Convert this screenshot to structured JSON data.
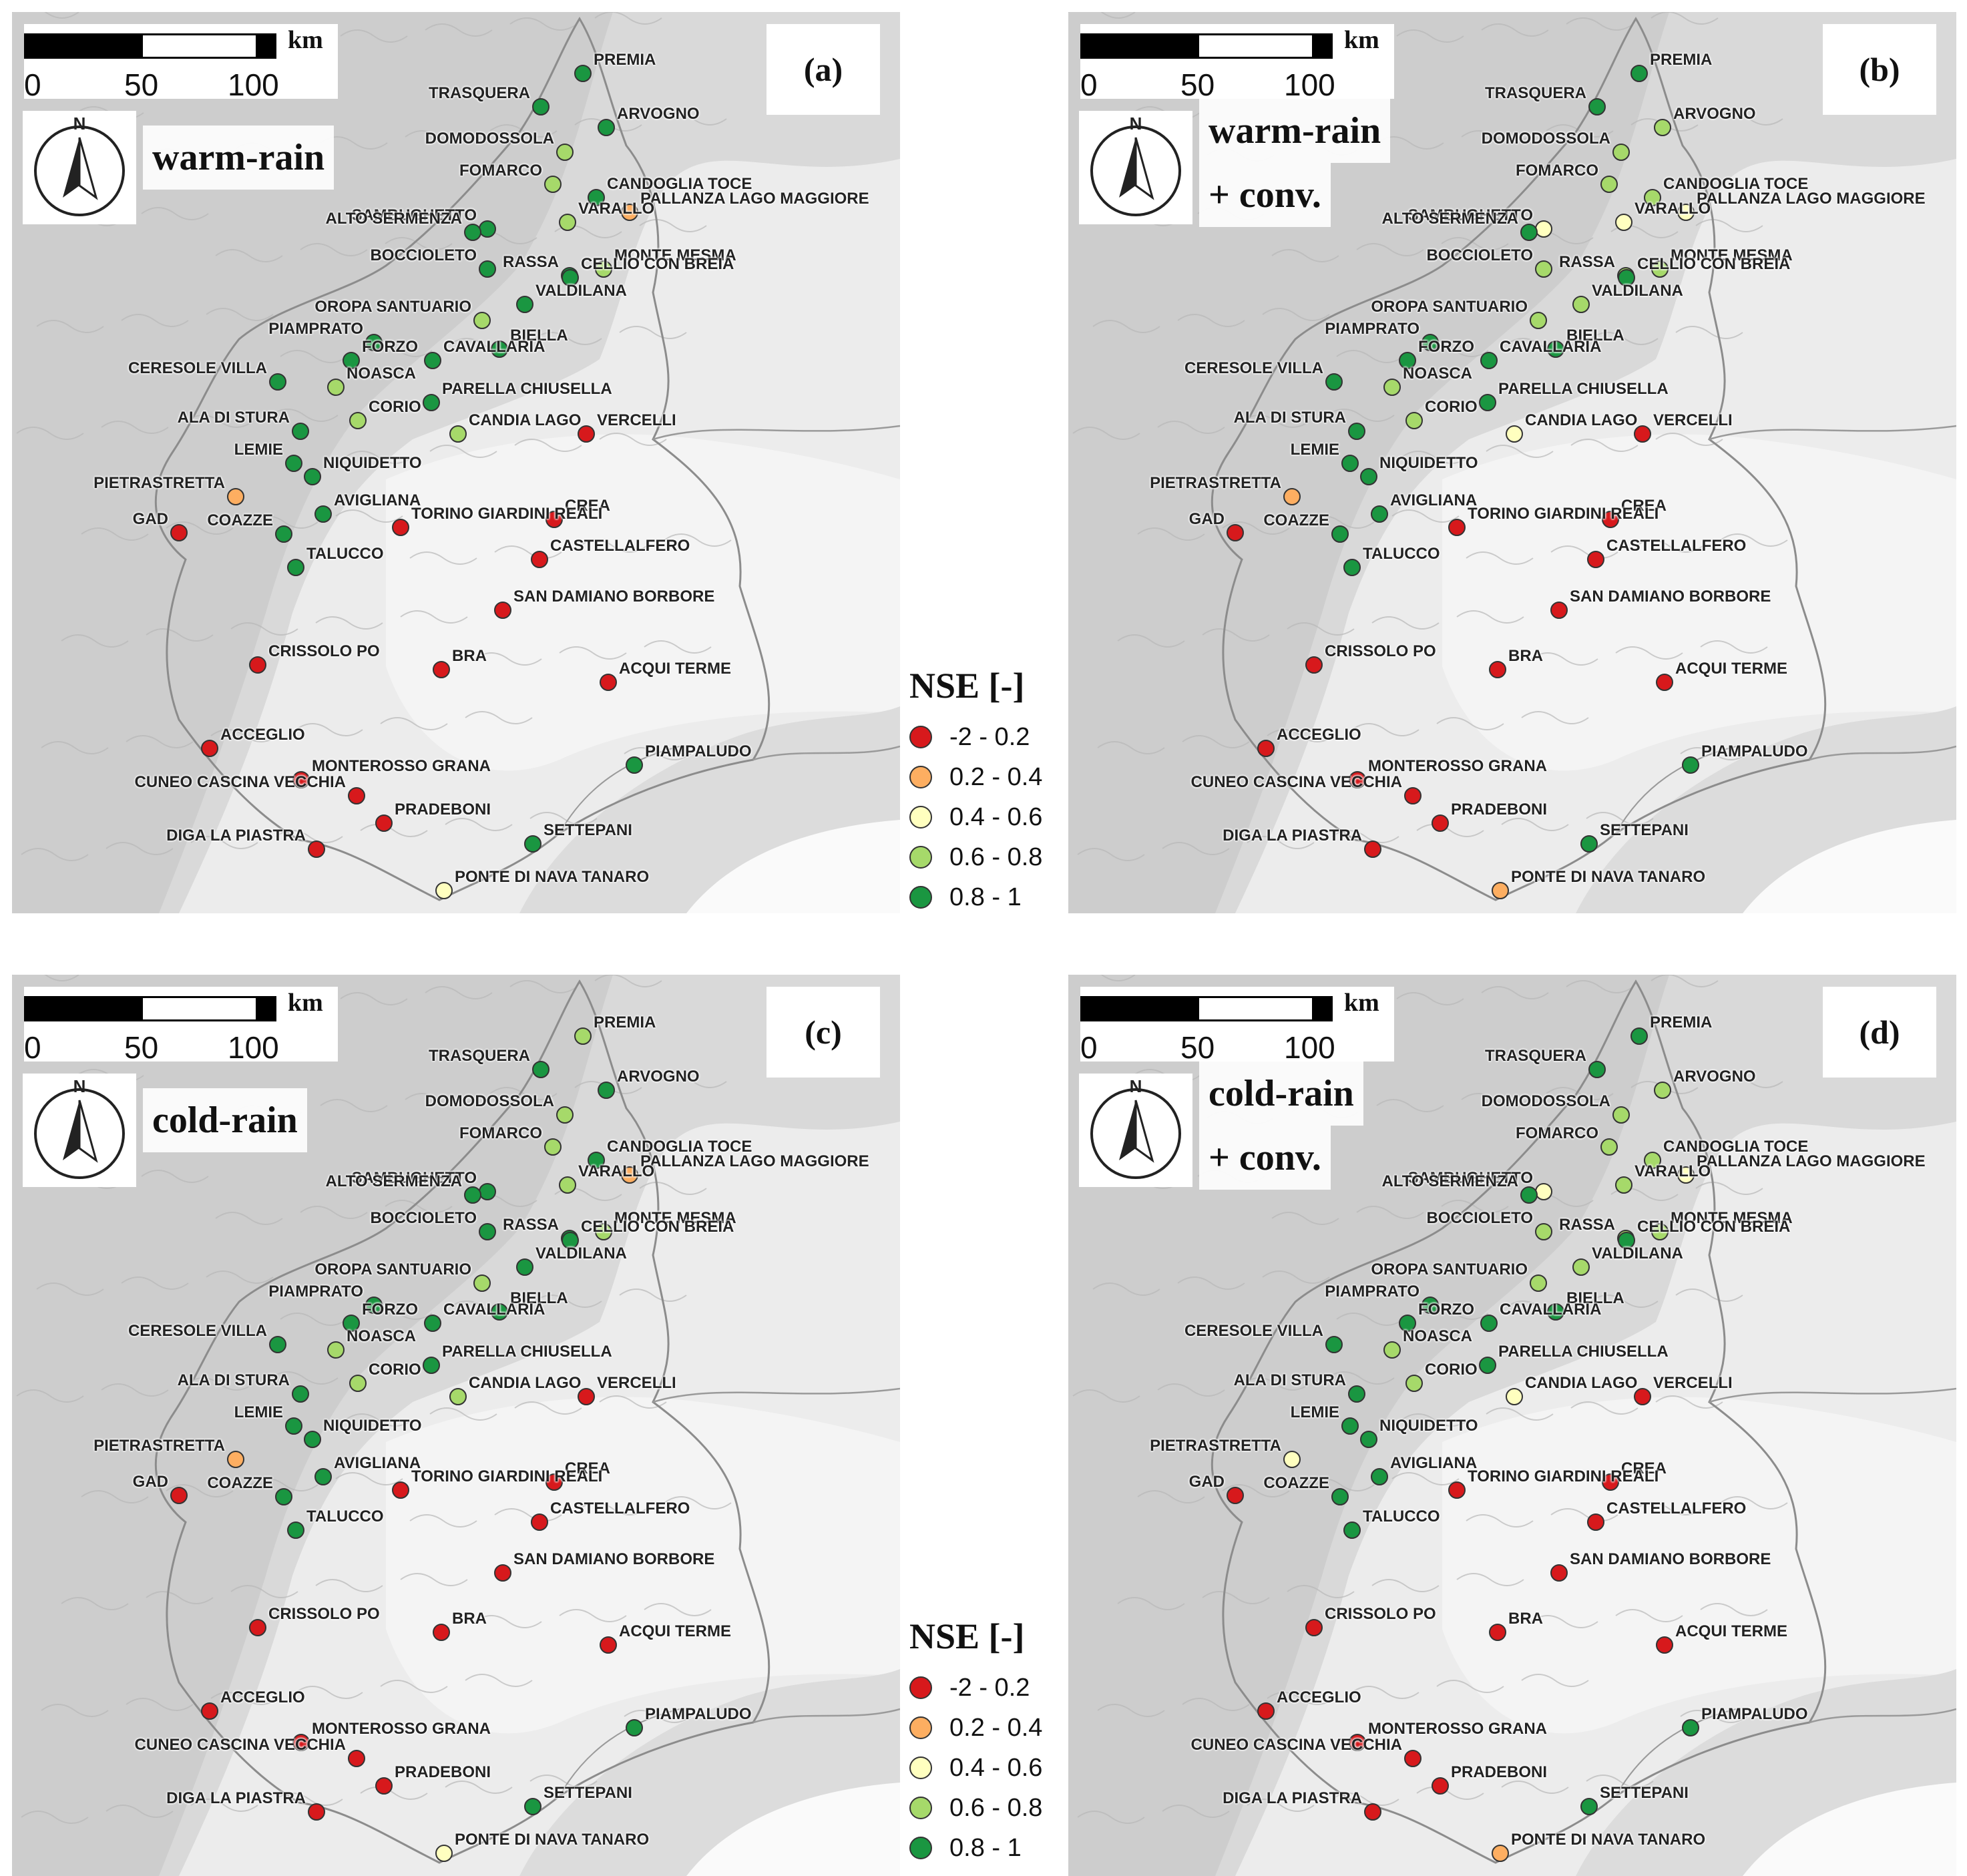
{
  "colors": {
    "c1": "#d7191c",
    "c2": "#fdae61",
    "c3": "#ffffbf",
    "c4": "#a6d96a",
    "c5": "#1a9641"
  },
  "scale": {
    "labels": [
      "0",
      "50",
      "100"
    ],
    "unit": "km"
  },
  "legend": {
    "title": "NSE [-]",
    "classes": [
      {
        "label": "-2 - 0.2",
        "color": "#d7191c"
      },
      {
        "label": "0.2 - 0.4",
        "color": "#fdae61"
      },
      {
        "label": "0.4 - 0.6",
        "color": "#ffffbf"
      },
      {
        "label": "0.6 - 0.8",
        "color": "#a6d96a"
      },
      {
        "label": "0.8 - 1",
        "color": "#1a9641"
      }
    ]
  },
  "panels": [
    {
      "letter": "(a)",
      "title_line1": "warm-rain",
      "title_line2": "",
      "classes": {
        "PREMIA": 5,
        "TRASQUERA": 5,
        "ARVOGNO": 5,
        "DOMODOSSOLA": 4,
        "FOMARCO": 4,
        "CANDOGLIA TOCE": 5,
        "PALLANZA LAGO MAGGIORE": 2,
        "SAMBUGHETTO": 5,
        "ALTO SERMENZA": 5,
        "VARALLO": 4,
        "BOCCIOLETO": 5,
        "MONTE MESMA": 4,
        "RASSA": 5,
        "CELLIO CON BREIA": 5,
        "OROPA SANTUARIO": 4,
        "VALDILANA": 5,
        "PIAMPRATO": 5,
        "BIELLA": 5,
        "CERESOLE VILLA": 5,
        "FORZO": 5,
        "CAVALLARIA": 5,
        "NOASCA": 4,
        "PARELLA CHIUSELLA": 5,
        "ALA DI STURA": 5,
        "CORIO": 4,
        "CANDIA LAGO": 4,
        "VERCELLI": 1,
        "LEMIE": 5,
        "NIQUIDETTO": 5,
        "PIETRASTRETTA": 2,
        "AVIGLIANA": 5,
        "CREA": 1,
        "GAD": 1,
        "COAZZE": 5,
        "TORINO GIARDINI REALI": 1,
        "TALUCCO": 5,
        "CASTELLALFERO": 1,
        "SAN DAMIANO BORBORE": 1,
        "CRISSOLO PO": 1,
        "BRA": 1,
        "ACQUI TERME": 1,
        "ACCEGLIO": 1,
        "PIAMPALUDO": 5,
        "MONTEROSSO GRANA": 1,
        "CUNEO CASCINA VECCHIA": 1,
        "PRADEBONI": 1,
        "DIGA LA PIASTRA": 1,
        "SETTEPANI": 5,
        "PONTE DI NAVA TANARO": 3
      }
    },
    {
      "letter": "(b)",
      "title_line1": "warm-rain",
      "title_line2": "+ conv.",
      "classes": {
        "PREMIA": 5,
        "TRASQUERA": 5,
        "ARVOGNO": 4,
        "DOMODOSSOLA": 4,
        "FOMARCO": 4,
        "CANDOGLIA TOCE": 4,
        "PALLANZA LAGO MAGGIORE": 3,
        "SAMBUGHETTO": 3,
        "ALTO SERMENZA": 5,
        "VARALLO": 3,
        "BOCCIOLETO": 4,
        "MONTE MESMA": 4,
        "RASSA": 4,
        "CELLIO CON BREIA": 5,
        "OROPA SANTUARIO": 4,
        "VALDILANA": 4,
        "PIAMPRATO": 5,
        "BIELLA": 5,
        "CERESOLE VILLA": 5,
        "FORZO": 5,
        "CAVALLARIA": 5,
        "NOASCA": 4,
        "PARELLA CHIUSELLA": 5,
        "ALA DI STURA": 5,
        "CORIO": 4,
        "CANDIA LAGO": 3,
        "VERCELLI": 1,
        "LEMIE": 5,
        "NIQUIDETTO": 5,
        "PIETRASTRETTA": 2,
        "AVIGLIANA": 5,
        "CREA": 1,
        "GAD": 1,
        "COAZZE": 5,
        "TORINO GIARDINI REALI": 1,
        "TALUCCO": 5,
        "CASTELLALFERO": 1,
        "SAN DAMIANO BORBORE": 1,
        "CRISSOLO PO": 1,
        "BRA": 1,
        "ACQUI TERME": 1,
        "ACCEGLIO": 1,
        "PIAMPALUDO": 5,
        "MONTEROSSO GRANA": 1,
        "CUNEO CASCINA VECCHIA": 1,
        "PRADEBONI": 1,
        "DIGA LA PIASTRA": 1,
        "SETTEPANI": 5,
        "PONTE DI NAVA TANARO": 2
      }
    },
    {
      "letter": "(c)",
      "title_line1": "cold-rain",
      "title_line2": "",
      "classes": {
        "PREMIA": 4,
        "TRASQUERA": 5,
        "ARVOGNO": 5,
        "DOMODOSSOLA": 4,
        "FOMARCO": 4,
        "CANDOGLIA TOCE": 5,
        "PALLANZA LAGO MAGGIORE": 2,
        "SAMBUGHETTO": 5,
        "ALTO SERMENZA": 5,
        "VARALLO": 4,
        "BOCCIOLETO": 5,
        "MONTE MESMA": 4,
        "RASSA": 5,
        "CELLIO CON BREIA": 5,
        "OROPA SANTUARIO": 4,
        "VALDILANA": 5,
        "PIAMPRATO": 5,
        "BIELLA": 5,
        "CERESOLE VILLA": 5,
        "FORZO": 5,
        "CAVALLARIA": 5,
        "NOASCA": 4,
        "PARELLA CHIUSELLA": 5,
        "ALA DI STURA": 5,
        "CORIO": 4,
        "CANDIA LAGO": 4,
        "VERCELLI": 1,
        "LEMIE": 5,
        "NIQUIDETTO": 5,
        "PIETRASTRETTA": 2,
        "AVIGLIANA": 5,
        "CREA": 1,
        "GAD": 1,
        "COAZZE": 5,
        "TORINO GIARDINI REALI": 1,
        "TALUCCO": 5,
        "CASTELLALFERO": 1,
        "SAN DAMIANO BORBORE": 1,
        "CRISSOLO PO": 1,
        "BRA": 1,
        "ACQUI TERME": 1,
        "ACCEGLIO": 1,
        "PIAMPALUDO": 5,
        "MONTEROSSO GRANA": 1,
        "CUNEO CASCINA VECCHIA": 1,
        "PRADEBONI": 1,
        "DIGA LA PIASTRA": 1,
        "SETTEPANI": 5,
        "PONTE DI NAVA TANARO": 3
      }
    },
    {
      "letter": "(d)",
      "title_line1": "cold-rain",
      "title_line2": "+ conv.",
      "classes": {
        "PREMIA": 5,
        "TRASQUERA": 5,
        "ARVOGNO": 4,
        "DOMODOSSOLA": 4,
        "FOMARCO": 4,
        "CANDOGLIA TOCE": 4,
        "PALLANZA LAGO MAGGIORE": 3,
        "SAMBUGHETTO": 3,
        "ALTO SERMENZA": 5,
        "VARALLO": 4,
        "BOCCIOLETO": 4,
        "MONTE MESMA": 4,
        "RASSA": 4,
        "CELLIO CON BREIA": 5,
        "OROPA SANTUARIO": 4,
        "VALDILANA": 4,
        "PIAMPRATO": 5,
        "BIELLA": 5,
        "CERESOLE VILLA": 5,
        "FORZO": 5,
        "CAVALLARIA": 5,
        "NOASCA": 4,
        "PARELLA CHIUSELLA": 5,
        "ALA DI STURA": 5,
        "CORIO": 4,
        "CANDIA LAGO": 3,
        "VERCELLI": 1,
        "LEMIE": 5,
        "NIQUIDETTO": 5,
        "PIETRASTRETTA": 3,
        "AVIGLIANA": 5,
        "CREA": 1,
        "GAD": 1,
        "COAZZE": 5,
        "TORINO GIARDINI REALI": 1,
        "TALUCCO": 5,
        "CASTELLALFERO": 1,
        "SAN DAMIANO BORBORE": 1,
        "CRISSOLO PO": 1,
        "BRA": 1,
        "ACQUI TERME": 1,
        "ACCEGLIO": 1,
        "PIAMPALUDO": 5,
        "MONTEROSSO GRANA": 1,
        "CUNEO CASCINA VECCHIA": 1,
        "PRADEBONI": 1,
        "DIGA LA PIASTRA": 1,
        "SETTEPANI": 5,
        "PONTE DI NAVA TANARO": 2
      }
    }
  ]
}
